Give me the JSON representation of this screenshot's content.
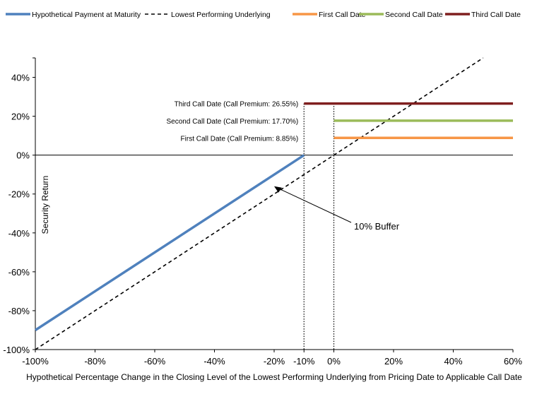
{
  "chart_data": {
    "type": "line",
    "xlabel": "Hypothetical Percentage Change in the Closing Level of the Lowest Performing Underlying from Pricing Date to Applicable Call Date",
    "ylabel": "Security Return",
    "xlim": [
      -100,
      60
    ],
    "ylim": [
      -100,
      50
    ],
    "x_ticks": [
      "-100%",
      "-80%",
      "-60%",
      "-40%",
      "-20%",
      "-10%",
      "0%",
      "20%",
      "40%",
      "60%"
    ],
    "x_tick_values": [
      -100,
      -80,
      -60,
      -40,
      -20,
      -10,
      0,
      20,
      40,
      60
    ],
    "y_ticks": [
      "40%",
      "20%",
      "0%",
      "-20%",
      "-40%",
      "-60%",
      "-80%",
      "-100%"
    ],
    "y_tick_values": [
      40,
      20,
      0,
      -20,
      -40,
      -60,
      -80,
      -100
    ],
    "legend_position": "top",
    "series": [
      {
        "name": "Hypothetical Payment at Maturity",
        "style": "solid",
        "color": "#4F81BD",
        "points": [
          [
            -100,
            -90
          ],
          [
            -10,
            0
          ]
        ]
      },
      {
        "name": "Lowest Performing Underlying",
        "style": "dashed",
        "color": "#000000",
        "points": [
          [
            -100,
            -100
          ],
          [
            50,
            50
          ]
        ]
      },
      {
        "name": "First Call Date",
        "style": "solid",
        "color": "#F79646",
        "points": [
          [
            0,
            8.85
          ],
          [
            60,
            8.85
          ]
        ]
      },
      {
        "name": "Second Call Date",
        "style": "solid",
        "color": "#9BBB59",
        "points": [
          [
            0,
            17.7
          ],
          [
            60,
            17.7
          ]
        ]
      },
      {
        "name": "Third Call Date",
        "style": "solid",
        "color": "#7F1F1F",
        "points": [
          [
            -10,
            26.55
          ],
          [
            60,
            26.55
          ]
        ]
      }
    ],
    "reference_lines": [
      {
        "x": -10,
        "style": "dotted"
      },
      {
        "x": 0,
        "style": "dotted"
      }
    ],
    "annotations": [
      {
        "text": "Third Call Date (Call Premium: 26.55%)",
        "y": 26.55
      },
      {
        "text": "Second Call Date (Call Premium: 17.70%)",
        "y": 17.7
      },
      {
        "text": "First Call Date (Call Premium: 8.85%)",
        "y": 8.85
      }
    ],
    "arrow_annotation": {
      "text": "10% Buffer",
      "target": [
        -20,
        -16
      ]
    }
  }
}
